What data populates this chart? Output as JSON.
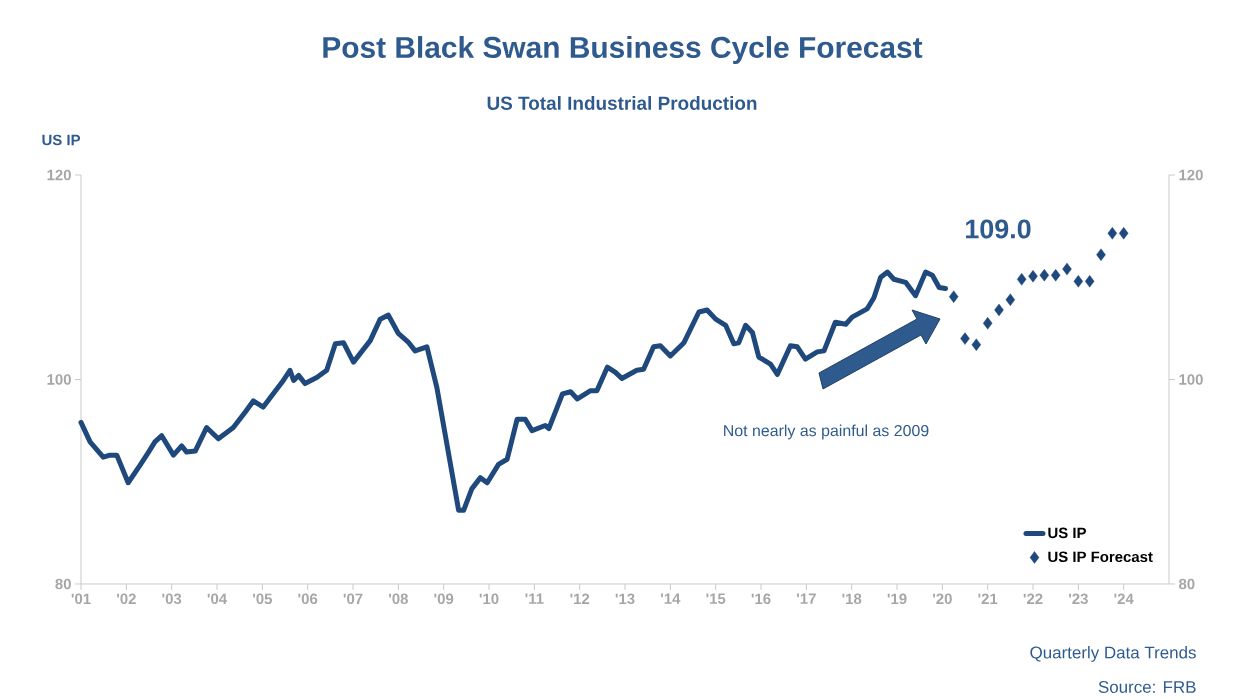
{
  "chart_data": {
    "type": "line",
    "title": "Post Black Swan Business Cycle Forecast",
    "subtitle": "US Total Industrial Production",
    "ylabel": "US IP",
    "xlim": [
      2001,
      2025
    ],
    "ylim": [
      80,
      120
    ],
    "yticks": [
      80,
      100,
      120
    ],
    "y2lim": [
      80,
      120
    ],
    "y2ticks": [
      80,
      100,
      120
    ],
    "xticks": [
      {
        "value": 2001,
        "label": "'01"
      },
      {
        "value": 2002,
        "label": "'02"
      },
      {
        "value": 2003,
        "label": "'03"
      },
      {
        "value": 2004,
        "label": "'04"
      },
      {
        "value": 2005,
        "label": "'05"
      },
      {
        "value": 2006,
        "label": "'06"
      },
      {
        "value": 2007,
        "label": "'07"
      },
      {
        "value": 2008,
        "label": "'08"
      },
      {
        "value": 2009,
        "label": "'09"
      },
      {
        "value": 2010,
        "label": "'10"
      },
      {
        "value": 2011,
        "label": "'11"
      },
      {
        "value": 2012,
        "label": "'12"
      },
      {
        "value": 2013,
        "label": "'13"
      },
      {
        "value": 2014,
        "label": "'14"
      },
      {
        "value": 2015,
        "label": "'15"
      },
      {
        "value": 2016,
        "label": "'16"
      },
      {
        "value": 2017,
        "label": "'17"
      },
      {
        "value": 2018,
        "label": "'18"
      },
      {
        "value": 2019,
        "label": "'19"
      },
      {
        "value": 2020,
        "label": "'20"
      },
      {
        "value": 2021,
        "label": "'21"
      },
      {
        "value": 2022,
        "label": "'22"
      },
      {
        "value": 2023,
        "label": "'23"
      },
      {
        "value": 2024,
        "label": "'24"
      }
    ],
    "grid": false,
    "legend": "bottom right",
    "series": [
      {
        "name": "US IP",
        "type": "line",
        "marker": "none",
        "color": "#1f497d",
        "x": [
          2001.0,
          2001.2,
          2001.49,
          2001.64,
          2001.79,
          2002.04,
          2002.3,
          2002.49,
          2002.63,
          2002.78,
          2003.04,
          2003.22,
          2003.33,
          2003.52,
          2003.77,
          2004.03,
          2004.36,
          2004.62,
          2004.8,
          2005.02,
          2005.24,
          2005.43,
          2005.61,
          2005.69,
          2005.8,
          2005.94,
          2006.2,
          2006.42,
          2006.61,
          2006.79,
          2007.01,
          2007.38,
          2007.6,
          2007.78,
          2008.0,
          2008.23,
          2008.37,
          2008.63,
          2008.85,
          2009.07,
          2009.33,
          2009.44,
          2009.62,
          2009.81,
          2009.96,
          2010.21,
          2010.4,
          2010.62,
          2010.8,
          2010.95,
          2011.24,
          2011.32,
          2011.62,
          2011.8,
          2011.95,
          2012.24,
          2012.38,
          2012.61,
          2012.79,
          2012.93,
          2013.26,
          2013.41,
          2013.63,
          2013.78,
          2014.0,
          2014.3,
          2014.63,
          2014.81,
          2015.0,
          2015.22,
          2015.4,
          2015.51,
          2015.66,
          2015.81,
          2015.95,
          2016.21,
          2016.36,
          2016.65,
          2016.8,
          2016.98,
          2017.24,
          2017.39,
          2017.64,
          2017.87,
          2018.01,
          2018.34,
          2018.49,
          2018.64,
          2018.79,
          2018.93,
          2019.19,
          2019.41,
          2019.63,
          2019.78,
          2019.93,
          2020.07
        ],
        "values": [
          95.8,
          93.9,
          92.4,
          92.6,
          92.6,
          89.9,
          91.6,
          92.9,
          93.9,
          94.5,
          92.6,
          93.5,
          92.9,
          93.0,
          95.3,
          94.2,
          95.3,
          96.8,
          97.9,
          97.3,
          98.6,
          99.7,
          100.9,
          99.9,
          100.4,
          99.6,
          100.2,
          100.9,
          103.5,
          103.6,
          101.7,
          103.8,
          105.9,
          106.3,
          104.5,
          103.6,
          102.8,
          103.2,
          99.2,
          93.7,
          87.2,
          87.2,
          89.3,
          90.4,
          89.9,
          91.7,
          92.2,
          96.1,
          96.1,
          95.0,
          95.5,
          95.2,
          98.6,
          98.8,
          98.1,
          98.9,
          98.9,
          101.2,
          100.7,
          100.1,
          100.9,
          101.0,
          103.2,
          103.3,
          102.3,
          103.6,
          106.6,
          106.8,
          105.9,
          105.3,
          103.5,
          103.6,
          105.3,
          104.6,
          102.2,
          101.5,
          100.5,
          103.3,
          103.2,
          102.0,
          102.7,
          102.8,
          105.6,
          105.4,
          106.1,
          106.9,
          108.0,
          110.0,
          110.5,
          109.8,
          109.5,
          108.2,
          110.5,
          110.2,
          109.0,
          108.9
        ]
      },
      {
        "name": "US IP Forecast",
        "type": "scatter",
        "marker": "diamond",
        "color": "#1f497d",
        "x": [
          2020.25,
          2020.5,
          2020.75,
          2021.0,
          2021.25,
          2021.5,
          2021.75,
          2022.0,
          2022.25,
          2022.5,
          2022.75,
          2023.0,
          2023.25,
          2023.5,
          2023.75,
          2024.0
        ],
        "values": [
          108.1,
          104.0,
          103.4,
          105.5,
          106.8,
          107.8,
          109.8,
          110.1,
          110.2,
          110.2,
          110.8,
          109.6,
          109.6,
          112.2,
          114.3,
          114.3
        ]
      }
    ],
    "annotations": [
      "109.0",
      "Not nearly as painful as 2009",
      "Quarterly Data Trends",
      "Source: FRB"
    ]
  }
}
